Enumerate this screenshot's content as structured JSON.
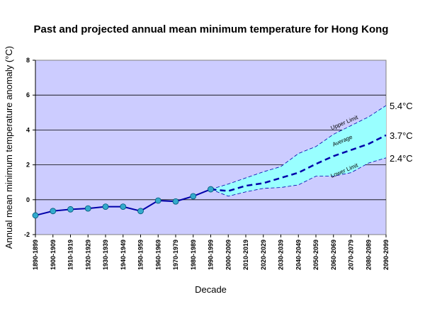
{
  "chart_data": {
    "type": "line",
    "title": "Past and projected annual mean minimum temperature for Hong Kong",
    "xlabel": "Decade",
    "ylabel": "Annual mean minimum temperature anomaly (°C)",
    "ylim": [
      -2,
      8
    ],
    "yticks": [
      "-2",
      "0",
      "2",
      "4",
      "6",
      "8"
    ],
    "grid": true,
    "categories": [
      "1890-1899",
      "1900-1909",
      "1910-1919",
      "1920-1929",
      "1930-1939",
      "1940-1949",
      "1950-1959",
      "1960-1969",
      "1970-1979",
      "1980-1989",
      "1990-1999",
      "2000-2009",
      "2010-2019",
      "2020-2029",
      "2030-2039",
      "2040-2049",
      "2050-2059",
      "2060-2069",
      "2070-2079",
      "2080-2089",
      "2090-2099"
    ],
    "series": [
      {
        "values": [
          -0.9,
          -0.65,
          -0.55,
          -0.5,
          -0.4,
          -0.4,
          -0.65,
          -0.05,
          -0.1,
          0.2,
          0.6,
          null,
          null,
          null,
          null,
          null,
          null,
          null,
          null,
          null,
          null
        ]
      },
      {
        "name": "Average",
        "values": [
          null,
          null,
          null,
          null,
          null,
          null,
          null,
          null,
          null,
          null,
          0.6,
          0.5,
          0.8,
          0.95,
          1.25,
          1.55,
          2.05,
          2.5,
          2.85,
          3.2,
          3.7
        ]
      },
      {
        "name": "Upper Limit",
        "values": [
          null,
          null,
          null,
          null,
          null,
          null,
          null,
          null,
          null,
          null,
          0.6,
          0.9,
          1.25,
          1.6,
          1.9,
          2.65,
          3.05,
          3.75,
          4.25,
          4.75,
          5.4
        ]
      },
      {
        "name": "Lower Limit",
        "values": [
          null,
          null,
          null,
          null,
          null,
          null,
          null,
          null,
          null,
          null,
          0.6,
          0.2,
          0.45,
          0.65,
          0.7,
          0.85,
          1.35,
          1.35,
          1.55,
          2.1,
          2.4
        ]
      }
    ],
    "annotations": {
      "upper_end": "5.4°C",
      "average_end": "3.7°C",
      "lower_end": "2.4°C"
    },
    "colors": {
      "plot_bg": "#ccccff",
      "band_fill": "#99ffff",
      "line": "#0000aa",
      "marker": "#33aacc"
    }
  }
}
